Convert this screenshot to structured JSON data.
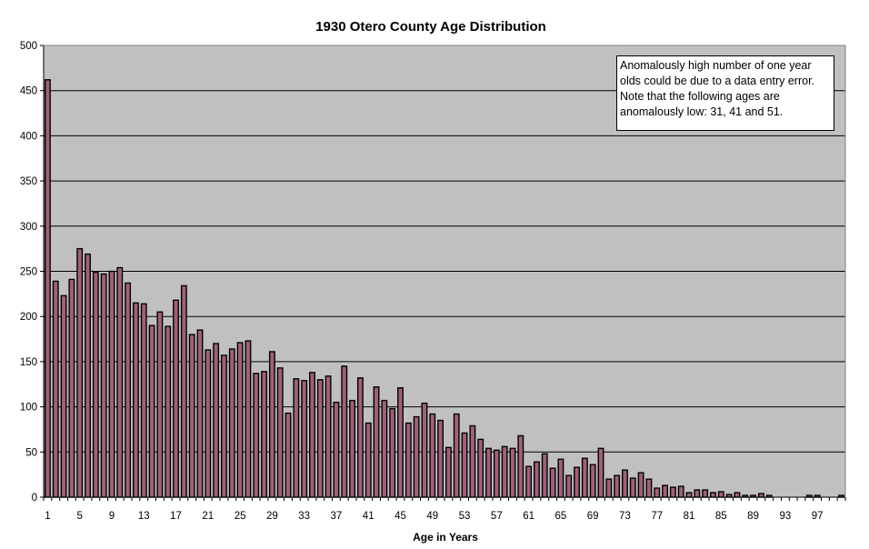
{
  "chart_data": {
    "type": "bar",
    "title": "1930 Otero County Age Distribution",
    "xlabel": "Age in Years",
    "ylabel": "",
    "ylim": [
      0,
      500
    ],
    "ytick_labels": [
      "0",
      "50",
      "100",
      "150",
      "200",
      "250",
      "300",
      "350",
      "400",
      "450",
      "500"
    ],
    "xtick_labels": [
      "1",
      "5",
      "9",
      "13",
      "17",
      "21",
      "25",
      "29",
      "33",
      "37",
      "41",
      "45",
      "49",
      "53",
      "57",
      "61",
      "65",
      "69",
      "73",
      "77",
      "81",
      "85",
      "89",
      "93",
      "97"
    ],
    "grid": "horizontal",
    "legend": "none",
    "annotation": "Anomalously high number of one year olds could be due to a data entry error.  Note that the following ages are anomalously low: 31, 41 and 51.",
    "categories": [
      1,
      2,
      3,
      4,
      5,
      6,
      7,
      8,
      9,
      10,
      11,
      12,
      13,
      14,
      15,
      16,
      17,
      18,
      19,
      20,
      21,
      22,
      23,
      24,
      25,
      26,
      27,
      28,
      29,
      30,
      31,
      32,
      33,
      34,
      35,
      36,
      37,
      38,
      39,
      40,
      41,
      42,
      43,
      44,
      45,
      46,
      47,
      48,
      49,
      50,
      51,
      52,
      53,
      54,
      55,
      56,
      57,
      58,
      59,
      60,
      61,
      62,
      63,
      64,
      65,
      66,
      67,
      68,
      69,
      70,
      71,
      72,
      73,
      74,
      75,
      76,
      77,
      78,
      79,
      80,
      81,
      82,
      83,
      84,
      85,
      86,
      87,
      88,
      89,
      90,
      91,
      92,
      93,
      94,
      95,
      96,
      97,
      98,
      99,
      100
    ],
    "values": [
      462,
      239,
      223,
      241,
      275,
      269,
      249,
      247,
      250,
      254,
      237,
      215,
      214,
      190,
      205,
      189,
      218,
      234,
      180,
      185,
      163,
      170,
      157,
      164,
      171,
      173,
      137,
      139,
      161,
      143,
      93,
      131,
      129,
      138,
      130,
      134,
      105,
      145,
      107,
      132,
      82,
      122,
      107,
      98,
      121,
      82,
      89,
      104,
      92,
      85,
      55,
      92,
      71,
      79,
      64,
      54,
      52,
      56,
      54,
      68,
      34,
      39,
      48,
      32,
      42,
      24,
      33,
      43,
      36,
      54,
      20,
      24,
      30,
      21,
      27,
      20,
      10,
      13,
      11,
      12,
      5,
      8,
      8,
      5,
      6,
      3,
      5,
      2,
      2,
      4,
      2,
      0,
      0,
      0,
      0,
      2,
      2,
      0,
      0,
      2
    ],
    "colors": {
      "bar": "#a0607a",
      "plot_bg": "#c0c0c0",
      "grid": "#000000"
    }
  }
}
